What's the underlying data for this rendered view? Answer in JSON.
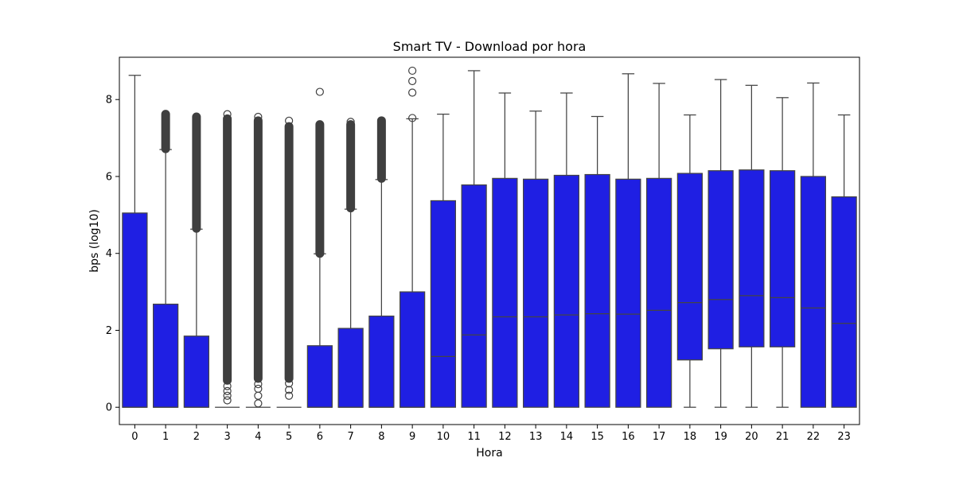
{
  "chart_data": {
    "type": "box",
    "title": "Smart TV - Download por hora",
    "xlabel": "Hora",
    "ylabel": "bps (log10)",
    "categories": [
      "0",
      "1",
      "2",
      "3",
      "4",
      "5",
      "6",
      "7",
      "8",
      "9",
      "10",
      "11",
      "12",
      "13",
      "14",
      "15",
      "16",
      "17",
      "18",
      "19",
      "20",
      "21",
      "22",
      "23"
    ],
    "yticks": [
      "0",
      "2",
      "4",
      "6",
      "8"
    ],
    "ylim": [
      -0.45,
      9.1
    ],
    "grid": false,
    "colors": {
      "box_fill": "#1f1fe3",
      "line": "#444444",
      "outlier": "#3f3f3f"
    },
    "boxes": [
      {
        "hour": "0",
        "min": 0,
        "q1": 0,
        "median": 0,
        "q3": 5.05,
        "max": 8.63
      },
      {
        "hour": "1",
        "min": 0,
        "q1": 0,
        "median": 0,
        "q3": 2.68,
        "max": 6.7
      },
      {
        "hour": "2",
        "min": 0,
        "q1": 0,
        "median": 0,
        "q3": 1.85,
        "max": 4.63
      },
      {
        "hour": "3",
        "min": 0,
        "q1": 0,
        "median": 0,
        "q3": 0,
        "max": 0
      },
      {
        "hour": "4",
        "min": 0,
        "q1": 0,
        "median": 0,
        "q3": 0,
        "max": 0
      },
      {
        "hour": "5",
        "min": 0,
        "q1": 0,
        "median": 0,
        "q3": 0,
        "max": 0
      },
      {
        "hour": "6",
        "min": 0,
        "q1": 0,
        "median": 0,
        "q3": 1.6,
        "max": 3.99
      },
      {
        "hour": "7",
        "min": 0,
        "q1": 0,
        "median": 0,
        "q3": 2.05,
        "max": 5.15
      },
      {
        "hour": "8",
        "min": 0,
        "q1": 0,
        "median": 0,
        "q3": 2.37,
        "max": 5.92
      },
      {
        "hour": "9",
        "min": 0,
        "q1": 0,
        "median": 0,
        "q3": 3.0,
        "max": 7.5
      },
      {
        "hour": "10",
        "min": 0,
        "q1": 0,
        "median": 1.32,
        "q3": 5.37,
        "max": 7.62
      },
      {
        "hour": "11",
        "min": 0,
        "q1": 0,
        "median": 1.88,
        "q3": 5.78,
        "max": 8.75
      },
      {
        "hour": "12",
        "min": 0,
        "q1": 0,
        "median": 2.35,
        "q3": 5.95,
        "max": 8.17
      },
      {
        "hour": "13",
        "min": 0,
        "q1": 0,
        "median": 2.35,
        "q3": 5.93,
        "max": 7.7
      },
      {
        "hour": "14",
        "min": 0,
        "q1": 0,
        "median": 2.4,
        "q3": 6.03,
        "max": 8.17
      },
      {
        "hour": "15",
        "min": 0,
        "q1": 0,
        "median": 2.43,
        "q3": 6.05,
        "max": 7.56
      },
      {
        "hour": "16",
        "min": 0,
        "q1": 0,
        "median": 2.42,
        "q3": 5.93,
        "max": 8.67
      },
      {
        "hour": "17",
        "min": 0,
        "q1": 0,
        "median": 2.52,
        "q3": 5.95,
        "max": 8.42
      },
      {
        "hour": "18",
        "min": 0,
        "q1": 1.23,
        "median": 2.72,
        "q3": 6.08,
        "max": 7.6
      },
      {
        "hour": "19",
        "min": 0,
        "q1": 1.52,
        "median": 2.8,
        "q3": 6.15,
        "max": 8.52
      },
      {
        "hour": "20",
        "min": 0,
        "q1": 1.57,
        "median": 2.9,
        "q3": 6.17,
        "max": 8.37
      },
      {
        "hour": "21",
        "min": 0,
        "q1": 1.57,
        "median": 2.85,
        "q3": 6.15,
        "max": 8.05
      },
      {
        "hour": "22",
        "min": 0,
        "q1": 0,
        "median": 2.58,
        "q3": 6.0,
        "max": 8.43
      },
      {
        "hour": "23",
        "min": 0,
        "q1": 0,
        "median": 2.18,
        "q3": 5.47,
        "max": 7.6
      }
    ],
    "outliers": [
      {
        "hour": "1",
        "dense_ranges": [
          [
            6.72,
            7.62
          ]
        ],
        "points": []
      },
      {
        "hour": "2",
        "dense_ranges": [
          [
            4.65,
            7.55
          ]
        ],
        "points": []
      },
      {
        "hour": "3",
        "dense_ranges": [
          [
            0.7,
            7.5
          ]
        ],
        "points": [
          0.18,
          0.3,
          0.42,
          0.55,
          7.62
        ]
      },
      {
        "hour": "4",
        "dense_ranges": [
          [
            0.75,
            7.45
          ]
        ],
        "points": [
          0.1,
          0.3,
          0.48,
          0.6,
          7.55
        ]
      },
      {
        "hour": "5",
        "dense_ranges": [
          [
            0.75,
            7.3
          ]
        ],
        "points": [
          0.3,
          0.45,
          0.62,
          7.45
        ]
      },
      {
        "hour": "6",
        "dense_ranges": [
          [
            4.0,
            7.35
          ]
        ],
        "points": [
          8.2
        ]
      },
      {
        "hour": "7",
        "dense_ranges": [
          [
            5.18,
            7.35
          ]
        ],
        "points": [
          7.42
        ]
      },
      {
        "hour": "8",
        "dense_ranges": [
          [
            5.95,
            7.45
          ]
        ],
        "points": []
      },
      {
        "hour": "9",
        "dense_ranges": [],
        "points": [
          7.52,
          8.18,
          8.48,
          8.75
        ]
      }
    ]
  }
}
